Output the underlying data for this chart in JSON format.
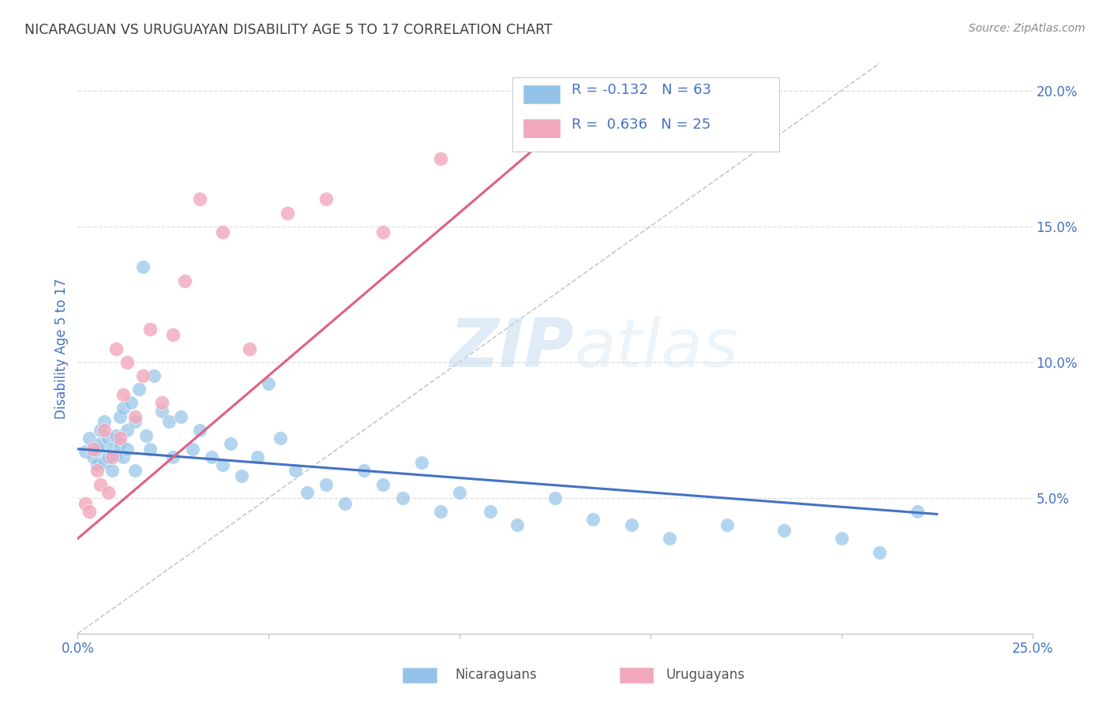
{
  "title": "NICARAGUAN VS URUGUAYAN DISABILITY AGE 5 TO 17 CORRELATION CHART",
  "source": "Source: ZipAtlas.com",
  "ylabel": "Disability Age 5 to 17",
  "xlim": [
    0.0,
    0.25
  ],
  "ylim": [
    0.0,
    0.21
  ],
  "nic_R": -0.132,
  "nic_N": 63,
  "uru_R": 0.636,
  "uru_N": 25,
  "nic_color": "#93C3E8",
  "uru_color": "#F2A8BC",
  "nic_line_color": "#4472C4",
  "uru_line_color": "#E06080",
  "diagonal_color": "#C8C8C8",
  "background_color": "#FFFFFF",
  "grid_color": "#DDDDDD",
  "title_color": "#404040",
  "source_color": "#888888",
  "legend_text_color": "#4472C4",
  "axis_label_color": "#4472C4",
  "watermark_zip": "ZIP",
  "watermark_atlas": "atlas",
  "legend_blue_label": "Nicaraguans",
  "legend_pink_label": "Uruguayans",
  "nic_line_x0": 0.0,
  "nic_line_y0": 0.068,
  "nic_line_x1": 0.225,
  "nic_line_y1": 0.044,
  "uru_line_x0": 0.0,
  "uru_line_y0": 0.035,
  "uru_line_x1": 0.125,
  "uru_line_y1": 0.185,
  "nic_x": [
    0.002,
    0.003,
    0.004,
    0.005,
    0.005,
    0.006,
    0.006,
    0.007,
    0.007,
    0.008,
    0.008,
    0.009,
    0.009,
    0.01,
    0.01,
    0.011,
    0.011,
    0.012,
    0.012,
    0.013,
    0.013,
    0.014,
    0.015,
    0.015,
    0.016,
    0.017,
    0.018,
    0.019,
    0.02,
    0.022,
    0.024,
    0.025,
    0.027,
    0.03,
    0.032,
    0.035,
    0.038,
    0.04,
    0.043,
    0.047,
    0.05,
    0.053,
    0.057,
    0.06,
    0.065,
    0.07,
    0.075,
    0.08,
    0.085,
    0.09,
    0.095,
    0.1,
    0.108,
    0.115,
    0.125,
    0.135,
    0.145,
    0.155,
    0.17,
    0.185,
    0.2,
    0.21,
    0.22
  ],
  "nic_y": [
    0.067,
    0.072,
    0.065,
    0.068,
    0.062,
    0.07,
    0.075,
    0.063,
    0.078,
    0.065,
    0.072,
    0.068,
    0.06,
    0.073,
    0.066,
    0.07,
    0.08,
    0.065,
    0.083,
    0.068,
    0.075,
    0.085,
    0.06,
    0.078,
    0.09,
    0.135,
    0.073,
    0.068,
    0.095,
    0.082,
    0.078,
    0.065,
    0.08,
    0.068,
    0.075,
    0.065,
    0.062,
    0.07,
    0.058,
    0.065,
    0.092,
    0.072,
    0.06,
    0.052,
    0.055,
    0.048,
    0.06,
    0.055,
    0.05,
    0.063,
    0.045,
    0.052,
    0.045,
    0.04,
    0.05,
    0.042,
    0.04,
    0.035,
    0.04,
    0.038,
    0.035,
    0.03,
    0.045
  ],
  "uru_x": [
    0.002,
    0.003,
    0.004,
    0.005,
    0.006,
    0.007,
    0.008,
    0.009,
    0.01,
    0.011,
    0.012,
    0.013,
    0.015,
    0.017,
    0.019,
    0.022,
    0.025,
    0.028,
    0.032,
    0.038,
    0.045,
    0.055,
    0.065,
    0.08,
    0.095
  ],
  "uru_y": [
    0.048,
    0.045,
    0.068,
    0.06,
    0.055,
    0.075,
    0.052,
    0.065,
    0.105,
    0.072,
    0.088,
    0.1,
    0.08,
    0.095,
    0.112,
    0.085,
    0.11,
    0.13,
    0.16,
    0.148,
    0.105,
    0.155,
    0.16,
    0.148,
    0.175
  ]
}
